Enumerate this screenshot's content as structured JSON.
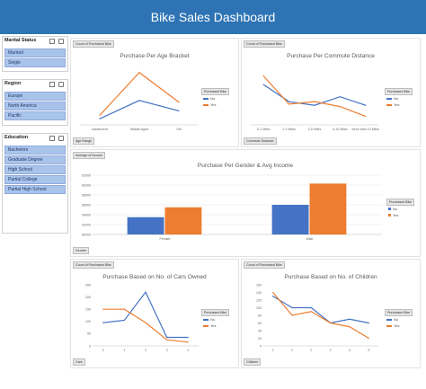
{
  "dashboard": {
    "title": "Bike Sales Dashboard"
  },
  "colors": {
    "banner": "#2e74b5",
    "no": "#4472c4",
    "yes": "#ed7d31"
  },
  "slicers": [
    {
      "title": "Marital Status",
      "items": [
        "Married",
        "Single"
      ]
    },
    {
      "title": "Region",
      "items": [
        "Europe",
        "North America",
        "Pacific"
      ]
    },
    {
      "title": "Education",
      "items": [
        "Bachelors",
        "Graduate Degree",
        "High School",
        "Partial College",
        "Partial High School"
      ]
    }
  ],
  "panels": {
    "age": {
      "value_tag": "Count of Purchased Bike",
      "field_button": "Age Range",
      "legend_title": "Purchased Bike"
    },
    "commute": {
      "value_tag": "Count of Purchased Bike",
      "field_button": "Commute Distance",
      "legend_title": "Purchased Bike"
    },
    "income": {
      "value_tag": "Average of Income",
      "field_button": "Gender",
      "legend_title": "Purchased Bike"
    },
    "cars": {
      "value_tag": "Count of Purchased Bike",
      "field_button": "Cars",
      "legend_title": "Purchased Bike"
    },
    "children": {
      "value_tag": "Count of Purchased Bike",
      "field_button": "Children",
      "legend_title": "Purchased Bike"
    }
  },
  "chart_data": [
    {
      "id": "age",
      "type": "line",
      "title": "Purchase Per Age Bracket",
      "categories": [
        "Adolescent",
        "Middle Aged",
        "Old"
      ],
      "series": [
        {
          "name": "No",
          "values": [
            70,
            280,
            160
          ]
        },
        {
          "name": "Yes",
          "values": [
            110,
            600,
            260
          ]
        }
      ],
      "ylim": [
        0,
        700
      ],
      "grid": false,
      "legend": "right"
    },
    {
      "id": "commute",
      "type": "line",
      "title": "Purchase Per Commute Distance",
      "categories": [
        "0-1 Miles",
        "1-2 Miles",
        "2-5 Miles",
        "5-10 Miles",
        "More than 10 Miles"
      ],
      "series": [
        {
          "name": "No",
          "values": [
            165,
            95,
            80,
            115,
            80
          ]
        },
        {
          "name": "Yes",
          "values": [
            200,
            85,
            95,
            75,
            35
          ]
        }
      ],
      "ylim": [
        0,
        250
      ],
      "grid": false,
      "legend": "right"
    },
    {
      "id": "income",
      "type": "bar",
      "title": "Purchase Per Gender & Avg Income",
      "categories": [
        "Female",
        "Male"
      ],
      "series": [
        {
          "name": "No",
          "values": [
            53500,
            56000
          ]
        },
        {
          "name": "Yes",
          "values": [
            55500,
            60300
          ]
        }
      ],
      "yticks": [
        50000,
        52000,
        54000,
        56000,
        58000,
        60000,
        62000
      ],
      "ylim": [
        50000,
        62000
      ],
      "grid": true,
      "legend": "right"
    },
    {
      "id": "cars",
      "type": "line",
      "title": "Purchase Based on No. of Cars Owned",
      "categories": [
        "0",
        "1",
        "2",
        "3",
        "4"
      ],
      "series": [
        {
          "name": "No",
          "values": [
            95,
            105,
            220,
            35,
            35
          ]
        },
        {
          "name": "Yes",
          "values": [
            150,
            150,
            95,
            25,
            15
          ]
        }
      ],
      "yticks": [
        0,
        50,
        100,
        150,
        200,
        250
      ],
      "ylim": [
        0,
        250
      ],
      "grid": false,
      "legend": "right"
    },
    {
      "id": "children",
      "type": "line",
      "title": "Purchase Based on No. of Children",
      "categories": [
        "0",
        "1",
        "2",
        "3",
        "4",
        "5"
      ],
      "series": [
        {
          "name": "No",
          "values": [
            130,
            100,
            100,
            60,
            70,
            60
          ]
        },
        {
          "name": "Yes",
          "values": [
            140,
            80,
            90,
            60,
            50,
            20
          ]
        }
      ],
      "yticks": [
        0,
        20,
        40,
        60,
        80,
        100,
        120,
        140,
        160
      ],
      "ylim": [
        0,
        160
      ],
      "grid": false,
      "legend": "right"
    }
  ]
}
